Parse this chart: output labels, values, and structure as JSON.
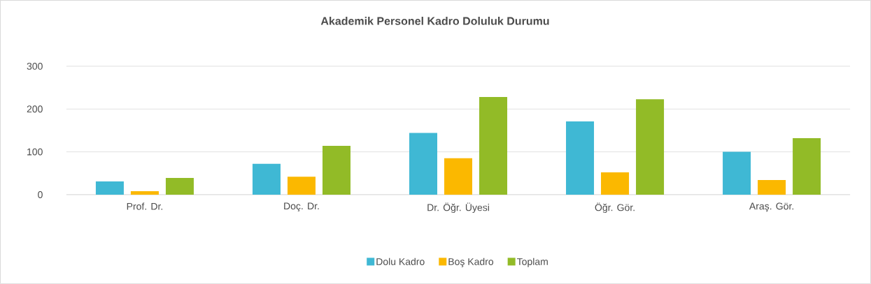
{
  "chart_data": {
    "type": "bar",
    "title": "Akademik Personel Kadro Doluluk Durumu",
    "categories": [
      "Prof. Dr.",
      "Doç. Dr.",
      "Dr. Öğr. Üyesi",
      "Öğr. Gör.",
      "Araş. Gör."
    ],
    "series": [
      {
        "name": "Dolu Kadro",
        "color": "#3fb8d4",
        "values": [
          31,
          72,
          144,
          171,
          100
        ]
      },
      {
        "name": "Boş Kadro",
        "color": "#fbb800",
        "values": [
          8,
          42,
          85,
          52,
          34
        ]
      },
      {
        "name": "Toplam",
        "color": "#92bb27",
        "values": [
          39,
          114,
          228,
          223,
          132
        ]
      }
    ],
    "ylim": [
      0,
      300
    ],
    "yticks": [
      0,
      100,
      200,
      300
    ],
    "grid": "y",
    "legend": "bottom"
  }
}
